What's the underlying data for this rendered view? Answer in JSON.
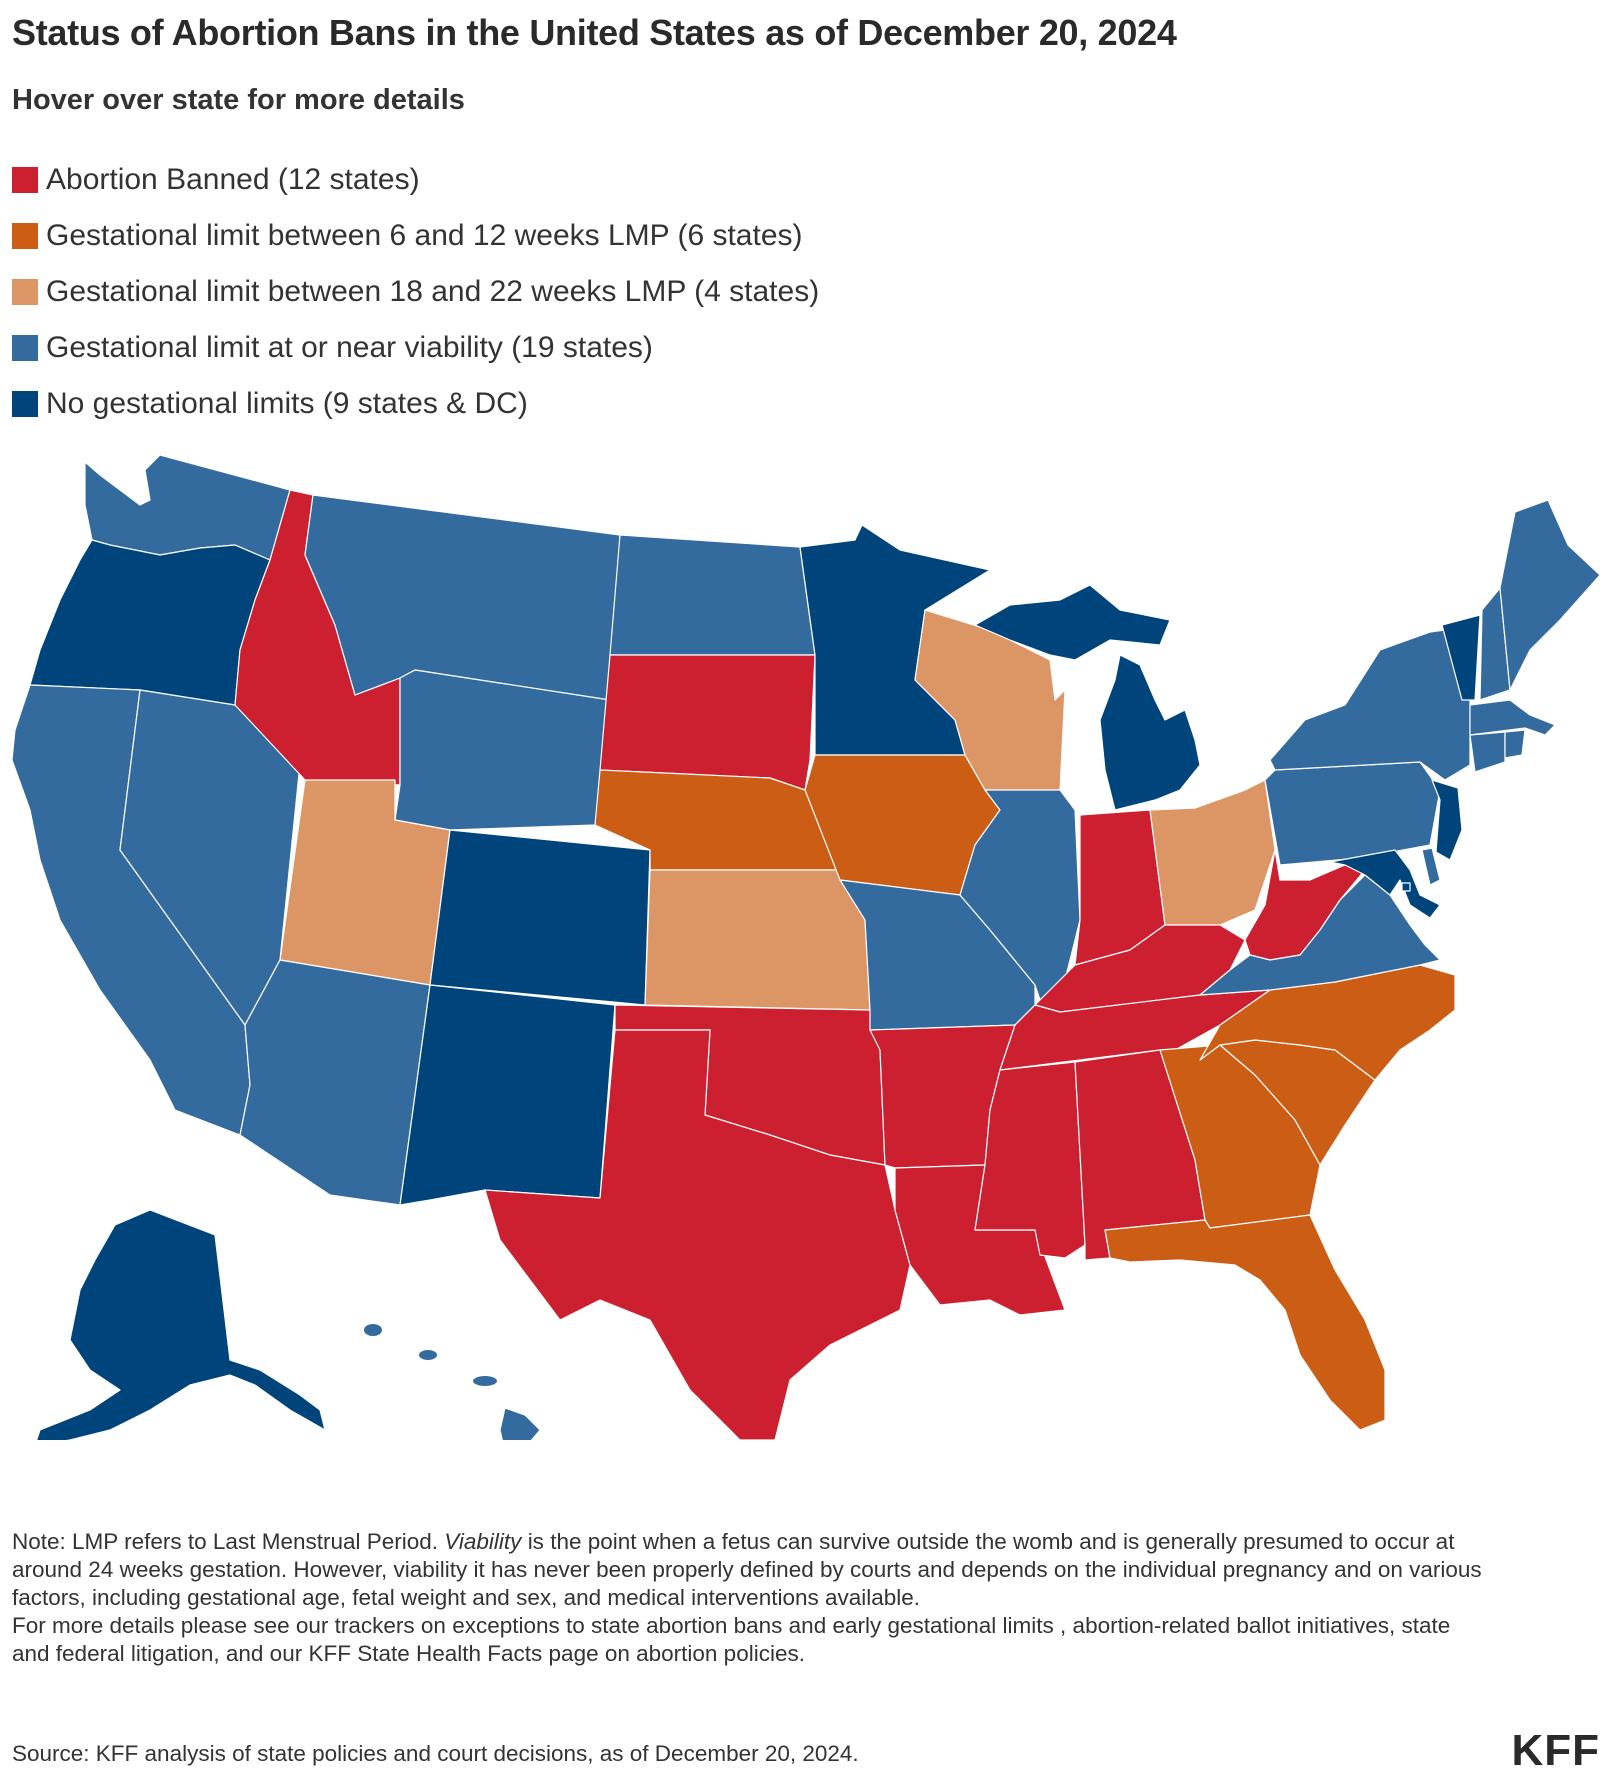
{
  "title": "Status of Abortion Bans in the United States as of December 20, 2024",
  "subtitle": "Hover over state for more details",
  "colors": {
    "banned": "#cc1f2f",
    "six_twelve": "#cc5d15",
    "eighteen_twentytwo": "#dc9565",
    "viability": "#336b9e",
    "none": "#00447c"
  },
  "legend": [
    {
      "key": "banned",
      "label": "Abortion Banned (12 states)"
    },
    {
      "key": "six_twelve",
      "label": "Gestational limit between 6 and 12 weeks LMP (6 states)"
    },
    {
      "key": "eighteen_twentytwo",
      "label": "Gestational limit between 18 and 22 weeks LMP (4 states)"
    },
    {
      "key": "viability",
      "label": "Gestational limit at or near viability (19 states)"
    },
    {
      "key": "none",
      "label": "No gestational limits (9 states & DC)"
    }
  ],
  "states": {
    "WA": "viability",
    "OR": "none",
    "CA": "viability",
    "NV": "viability",
    "ID": "banned",
    "MT": "viability",
    "WY": "viability",
    "UT": "eighteen_twentytwo",
    "AZ": "viability",
    "CO": "none",
    "NM": "none",
    "ND": "viability",
    "SD": "banned",
    "NE": "six_twelve",
    "KS": "eighteen_twentytwo",
    "OK": "banned",
    "TX": "banned",
    "MN": "none",
    "IA": "six_twelve",
    "MO": "viability",
    "AR": "banned",
    "LA": "banned",
    "WI": "eighteen_twentytwo",
    "IL": "viability",
    "MI": "none",
    "IN": "banned",
    "OH": "eighteen_twentytwo",
    "KY": "banned",
    "TN": "banned",
    "MS": "banned",
    "AL": "banned",
    "GA": "six_twelve",
    "FL": "six_twelve",
    "SC": "six_twelve",
    "NC": "six_twelve",
    "VA": "viability",
    "WV": "banned",
    "PA": "viability",
    "NY": "viability",
    "VT": "none",
    "NH": "viability",
    "ME": "viability",
    "MA": "viability",
    "RI": "viability",
    "CT": "viability",
    "NJ": "none",
    "DE": "viability",
    "MD": "none",
    "DC": "none",
    "AK": "none",
    "HI": "viability"
  },
  "footer": {
    "note_prefix": "Note: LMP refers to Last Menstrual Period.",
    "note_italic": "Viability",
    "note_rest": "is the point when a fetus can survive outside the womb and is generally presumed to occur at around 24 weeks gestation. However, viability it has never been properly defined by courts and depends on the individual pregnancy and on various factors, including gestational age, fetal weight and sex, and medical interventions available.",
    "more_details": "For more details please see our trackers on exceptions to state abortion bans and early gestational limits , abortion-related ballot initiatives, state and federal litigation, and our KFF State Health Facts page on abortion policies.",
    "source": "Source: KFF analysis of state policies and court decisions, as of December 20, 2024."
  },
  "logo_text": "KFF"
}
